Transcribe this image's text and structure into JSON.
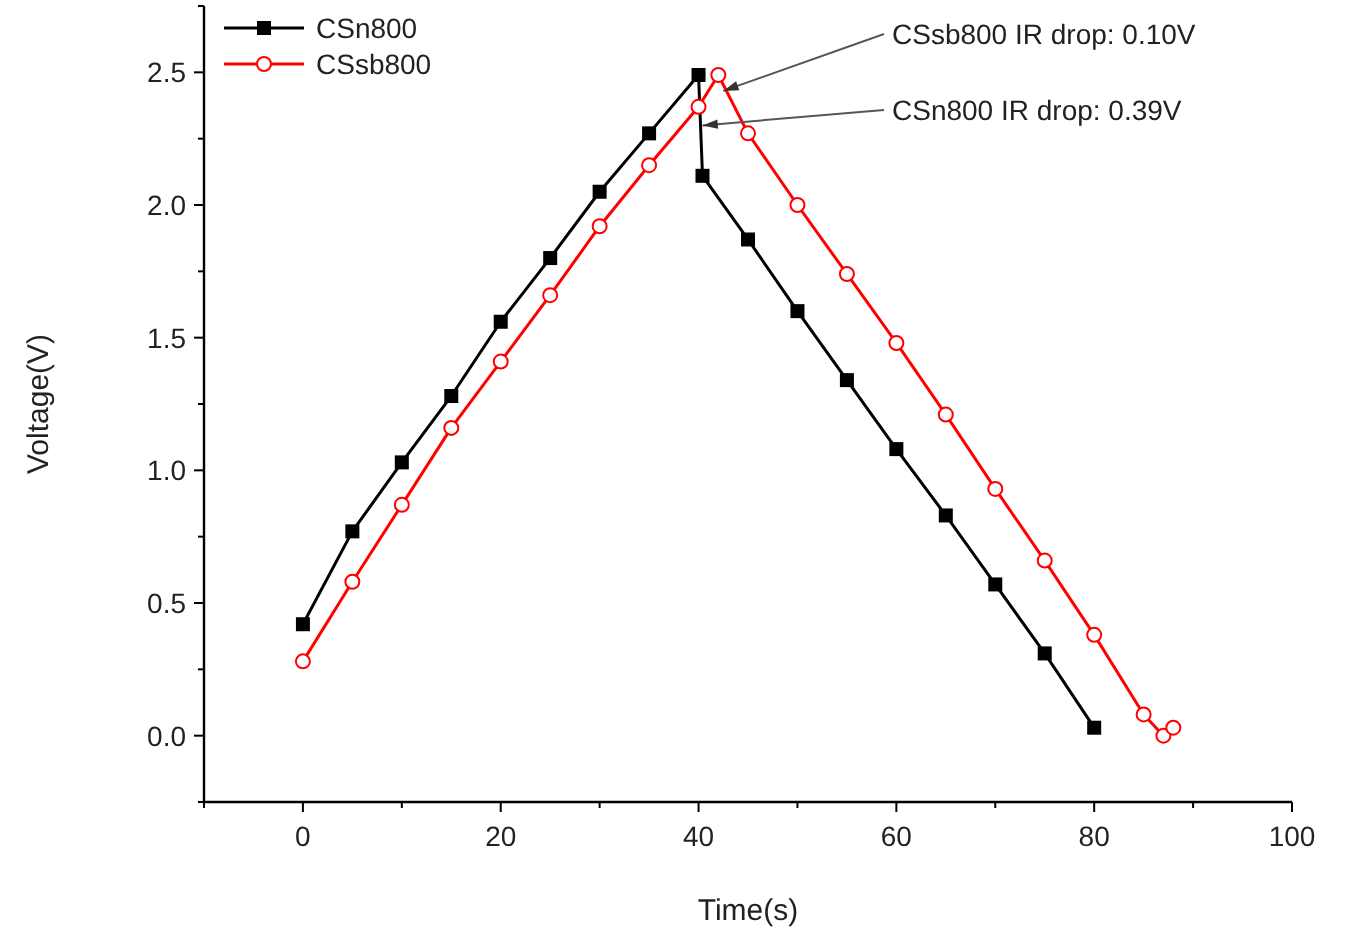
{
  "chart_data": {
    "type": "line",
    "xlabel": "Time(s)",
    "ylabel": "Voltage(V)",
    "xlim": [
      -10,
      100
    ],
    "ylim": [
      -0.25,
      2.75
    ],
    "xticks": [
      0,
      20,
      40,
      60,
      80,
      100
    ],
    "yticks": [
      {
        "value": 0,
        "label": "0.0"
      },
      0.5,
      {
        "value": 1,
        "label": "1.0"
      },
      1.5,
      {
        "value": 2,
        "label": "2.0"
      },
      2.5
    ],
    "grid": false,
    "legend": "top left",
    "line_style": "solid",
    "series": [
      {
        "name": "CSn800",
        "color": "#000000",
        "marker": "square",
        "x": [
          0,
          5,
          10,
          15,
          20,
          25,
          30,
          35,
          40,
          40.4,
          45,
          50,
          55,
          60,
          65,
          70,
          75,
          80
        ],
        "values": [
          0.42,
          0.77,
          1.03,
          1.28,
          1.56,
          1.8,
          2.05,
          2.27,
          2.49,
          2.11,
          1.87,
          1.6,
          1.34,
          1.08,
          0.83,
          0.57,
          0.31,
          0.03
        ]
      },
      {
        "name": "CSsb800",
        "color": "#ff0000",
        "marker": "circle",
        "x": [
          0,
          5,
          10,
          15,
          20,
          25,
          30,
          35,
          40,
          42,
          45,
          50,
          55,
          60,
          65,
          70,
          75,
          80,
          85,
          87,
          88
        ],
        "values": [
          0.28,
          0.58,
          0.87,
          1.16,
          1.41,
          1.66,
          1.92,
          2.15,
          2.37,
          2.49,
          2.27,
          2.0,
          1.74,
          1.48,
          1.21,
          0.93,
          0.66,
          0.38,
          0.08,
          0.0,
          0.03
        ]
      }
    ],
    "annotations": [
      {
        "text": "CSsb800 IR drop: 0.10V",
        "x": 42.5,
        "y": 2.43
      },
      {
        "text": "CSn800 IR drop: 0.39V",
        "x": 40.4,
        "y": 2.3
      }
    ]
  }
}
